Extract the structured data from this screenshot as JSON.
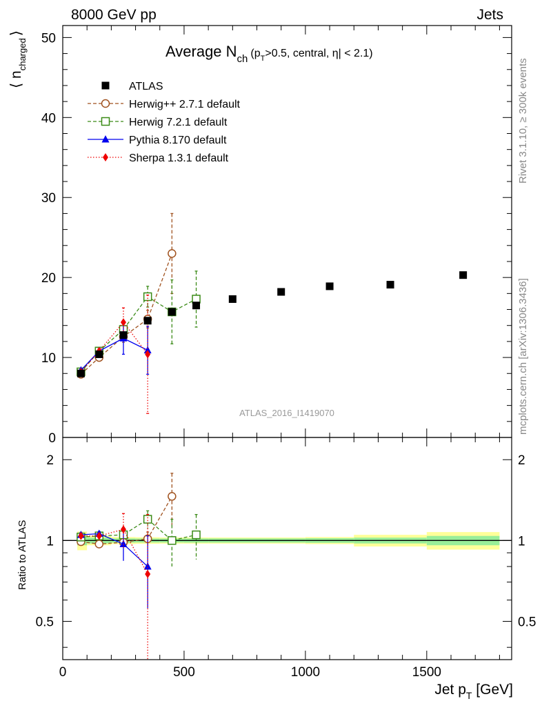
{
  "header": {
    "left": "8000 GeV pp",
    "right": "Jets"
  },
  "side_labels": {
    "rivet": "Rivet 3.1.10, ≥ 300k events",
    "mcplots": "mcplots.cern.ch [arXiv:1306.3436]"
  },
  "watermark": "ATLAS_2016_I1419070",
  "chart_data": {
    "type": "scatter",
    "title": {
      "main": "Average N",
      "sub": "ch",
      "detail_pre": "(p",
      "detail_sub": "T",
      "detail_post": ">0.5, central, η| < 2.1)"
    },
    "ylabel": {
      "main": "⟨ n",
      "sub": "charged",
      "close": "⟩"
    },
    "ratio_ylabel": "Ratio to ATLAS",
    "xlabel": {
      "main": "Jet p",
      "sub": "T",
      "unit": " [GeV]"
    },
    "xlim": [
      0,
      1850
    ],
    "ylim": [
      0,
      51.5
    ],
    "ratio_ylim": [
      0.36,
      2.42
    ],
    "ratio_scale": "log",
    "x_ticks": [
      "0",
      "500",
      "1000",
      "1500"
    ],
    "y_ticks": [
      "0",
      "10",
      "20",
      "30",
      "40",
      "50"
    ],
    "ratio_ticks": [
      "0.5",
      "1",
      "2"
    ],
    "legend_position": "top-left",
    "band_edges": [
      60,
      100,
      200,
      300,
      400,
      500,
      600,
      800,
      1000,
      1200,
      1500,
      1800
    ],
    "band_stat": [
      0.04,
      0.025,
      0.018,
      0.017,
      0.017,
      0.018,
      0.018,
      0.018,
      0.02,
      0.025,
      0.04
    ],
    "band_total": [
      0.08,
      0.04,
      0.03,
      0.028,
      0.026,
      0.026,
      0.026,
      0.026,
      0.03,
      0.05,
      0.075
    ],
    "series": [
      {
        "name": "ATLAS",
        "marker": "square-filled",
        "color": "#000000",
        "line": "none",
        "x": [
          75,
          150,
          250,
          350,
          450,
          550,
          700,
          900,
          1100,
          1350,
          1650
        ],
        "y": [
          8.0,
          10.4,
          12.8,
          14.6,
          15.7,
          16.5,
          17.3,
          18.2,
          18.9,
          19.1,
          20.3
        ]
      },
      {
        "name": "Herwig++ 2.7.1 default",
        "marker": "circle-open",
        "color": "#a0521f",
        "line": "dashed",
        "x": [
          75,
          150,
          250,
          350,
          450
        ],
        "y": [
          7.9,
          10.0,
          12.6,
          14.8,
          23.0
        ],
        "err": [
          0.2,
          0.3,
          0.7,
          1.1,
          5.0
        ],
        "ratio": [
          0.99,
          0.97,
          0.985,
          1.015,
          1.46
        ],
        "ratio_err": [
          0.02,
          0.02,
          0.03,
          0.06,
          0.32
        ]
      },
      {
        "name": "Herwig 7.2.1 default",
        "marker": "square-open",
        "color": "#3a8a16",
        "line": "dashed",
        "x": [
          75,
          150,
          250,
          350,
          450,
          550
        ],
        "y": [
          8.2,
          10.8,
          13.5,
          17.6,
          15.7,
          17.3
        ],
        "err": [
          0.2,
          0.3,
          0.8,
          1.3,
          4.0,
          3.5
        ],
        "ratio": [
          1.03,
          1.04,
          1.05,
          1.2,
          1.0,
          1.05
        ],
        "ratio_err": [
          0.02,
          0.02,
          0.05,
          0.09,
          0.2,
          0.2
        ]
      },
      {
        "name": "Pythia 8.170 default",
        "marker": "triangle-filled",
        "color": "#0000ee",
        "line": "solid",
        "x": [
          75,
          150,
          250,
          350
        ],
        "y": [
          8.4,
          10.8,
          12.4,
          10.9
        ],
        "err": [
          0.2,
          0.3,
          2.0,
          3.0
        ],
        "ratio": [
          1.05,
          1.06,
          0.97,
          0.8
        ],
        "ratio_err": [
          0.02,
          0.02,
          0.13,
          0.24
        ]
      },
      {
        "name": "Sherpa 1.3.1 default",
        "marker": "diamond-filled",
        "color": "#ee0000",
        "line": "dotted",
        "x": [
          75,
          150,
          250,
          350
        ],
        "y": [
          8.2,
          10.8,
          14.4,
          10.4
        ],
        "err": [
          0.2,
          0.3,
          1.8,
          7.4
        ],
        "ratio": [
          1.04,
          1.04,
          1.1,
          0.75
        ],
        "ratio_err": [
          0.02,
          0.02,
          0.16,
          0.5
        ]
      }
    ]
  }
}
